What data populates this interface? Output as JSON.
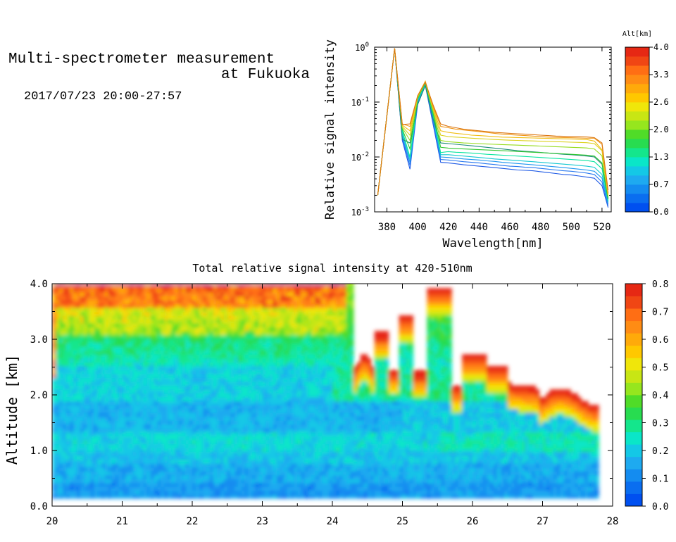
{
  "header": {
    "title_line1": "Multi-spectrometer measurement",
    "title_line2": "at Fukuoka",
    "subtitle": "2017/07/23 20:00-27:57"
  },
  "chart_data": [
    {
      "type": "line",
      "xlabel": "Wavelength[nm]",
      "ylabel": "Relative signal intensity",
      "xlim": [
        372,
        526
      ],
      "ylim": [
        0.001,
        1
      ],
      "yscale": "log",
      "xticks": [
        "380",
        "400",
        "420",
        "440",
        "460",
        "480",
        "500",
        "520"
      ],
      "yticks": [
        "10^0",
        "10^-1",
        "10^-2",
        "10^-3"
      ],
      "x": [
        374,
        385,
        390,
        395,
        400,
        405,
        410,
        415,
        420,
        425,
        430,
        435,
        440,
        445,
        450,
        455,
        460,
        465,
        470,
        475,
        480,
        485,
        490,
        495,
        500,
        505,
        510,
        515,
        520,
        524
      ],
      "series": [
        {
          "altitude": 0.0,
          "color": "#1e5ae6",
          "values": [
            0.002,
            0.95,
            0.02,
            0.006,
            0.09,
            0.2,
            0.04,
            0.008,
            0.0078,
            0.0075,
            0.0072,
            0.007,
            0.0068,
            0.0066,
            0.0064,
            0.0062,
            0.006,
            0.0058,
            0.0057,
            0.0056,
            0.0054,
            0.0052,
            0.005,
            0.0048,
            0.0047,
            0.0045,
            0.0043,
            0.0041,
            0.003,
            0.0012
          ]
        },
        {
          "altitude": 0.35,
          "color": "#2878f0",
          "values": [
            0.002,
            0.95,
            0.022,
            0.007,
            0.095,
            0.205,
            0.045,
            0.009,
            0.0088,
            0.0085,
            0.0082,
            0.008,
            0.0078,
            0.0075,
            0.0073,
            0.007,
            0.0068,
            0.0067,
            0.0065,
            0.0064,
            0.0062,
            0.006,
            0.0058,
            0.0056,
            0.0055,
            0.0053,
            0.0051,
            0.0048,
            0.0035,
            0.0013
          ]
        },
        {
          "altitude": 0.7,
          "color": "#1e96f0",
          "values": [
            0.002,
            0.95,
            0.024,
            0.008,
            0.1,
            0.21,
            0.05,
            0.01,
            0.0098,
            0.0095,
            0.0092,
            0.009,
            0.0088,
            0.0085,
            0.0083,
            0.008,
            0.0078,
            0.0076,
            0.0074,
            0.0072,
            0.007,
            0.0068,
            0.0066,
            0.0064,
            0.0062,
            0.006,
            0.0058,
            0.0055,
            0.0041,
            0.0014
          ]
        },
        {
          "altitude": 1.0,
          "color": "#14c8d2",
          "values": [
            0.002,
            0.95,
            0.027,
            0.009,
            0.105,
            0.215,
            0.055,
            0.011,
            0.011,
            0.0107,
            0.0104,
            0.0101,
            0.0098,
            0.0095,
            0.0092,
            0.009,
            0.0088,
            0.0086,
            0.0084,
            0.0082,
            0.008,
            0.0078,
            0.0076,
            0.0074,
            0.0072,
            0.007,
            0.0068,
            0.0065,
            0.0048,
            0.0015
          ]
        },
        {
          "altitude": 1.3,
          "color": "#0ae6a0",
          "values": [
            0.002,
            0.95,
            0.03,
            0.01,
            0.11,
            0.22,
            0.06,
            0.012,
            0.0125,
            0.0122,
            0.012,
            0.0118,
            0.0115,
            0.0112,
            0.011,
            0.0108,
            0.0106,
            0.0104,
            0.0102,
            0.01,
            0.0098,
            0.0096,
            0.0094,
            0.0092,
            0.009,
            0.0088,
            0.0086,
            0.0082,
            0.0061,
            0.0016
          ]
        },
        {
          "altitude": 1.65,
          "color": "#1e8c78",
          "values": [
            0.002,
            0.95,
            0.021,
            0.018,
            0.09,
            0.2,
            0.05,
            0.018,
            0.0175,
            0.017,
            0.0165,
            0.016,
            0.0155,
            0.015,
            0.0145,
            0.014,
            0.0135,
            0.013,
            0.0127,
            0.0124,
            0.0121,
            0.0118,
            0.0115,
            0.0112,
            0.011,
            0.0107,
            0.0104,
            0.01,
            0.0074,
            0.0017
          ]
        },
        {
          "altitude": 2.0,
          "color": "#32c832",
          "values": [
            0.002,
            0.95,
            0.032,
            0.014,
            0.115,
            0.225,
            0.065,
            0.015,
            0.0145,
            0.0142,
            0.014,
            0.0138,
            0.0136,
            0.0134,
            0.0132,
            0.013,
            0.0128,
            0.0126,
            0.0124,
            0.0122,
            0.012,
            0.0118,
            0.0116,
            0.0114,
            0.0112,
            0.011,
            0.0108,
            0.0104,
            0.0078,
            0.0018
          ]
        },
        {
          "altitude": 2.3,
          "color": "#96dc1e",
          "values": [
            0.002,
            0.95,
            0.034,
            0.02,
            0.12,
            0.23,
            0.07,
            0.02,
            0.019,
            0.0185,
            0.018,
            0.0178,
            0.0175,
            0.0172,
            0.017,
            0.0168,
            0.0166,
            0.0164,
            0.0162,
            0.016,
            0.0158,
            0.0156,
            0.0154,
            0.0152,
            0.015,
            0.0148,
            0.0146,
            0.014,
            0.0105,
            0.0019
          ]
        },
        {
          "altitude": 2.6,
          "color": "#dcd21e",
          "values": [
            0.002,
            0.95,
            0.036,
            0.025,
            0.125,
            0.235,
            0.075,
            0.025,
            0.0235,
            0.023,
            0.0225,
            0.022,
            0.0216,
            0.0212,
            0.0208,
            0.0205,
            0.0202,
            0.02,
            0.0198,
            0.0196,
            0.0194,
            0.0192,
            0.019,
            0.0188,
            0.0186,
            0.0184,
            0.0182,
            0.0175,
            0.013,
            0.002
          ]
        },
        {
          "altitude": 3.0,
          "color": "#f0be14",
          "values": [
            0.002,
            0.95,
            0.038,
            0.03,
            0.13,
            0.24,
            0.08,
            0.03,
            0.028,
            0.027,
            0.026,
            0.025,
            0.0245,
            0.024,
            0.0235,
            0.023,
            0.0228,
            0.0226,
            0.0224,
            0.0222,
            0.022,
            0.0218,
            0.0216,
            0.0214,
            0.0212,
            0.021,
            0.0208,
            0.0195,
            0.0135,
            0.0021
          ]
        },
        {
          "altitude": 3.5,
          "color": "#f09614",
          "values": [
            0.002,
            0.95,
            0.04,
            0.036,
            0.13,
            0.235,
            0.085,
            0.036,
            0.034,
            0.032,
            0.031,
            0.03,
            0.029,
            0.028,
            0.027,
            0.026,
            0.0255,
            0.025,
            0.0245,
            0.024,
            0.0235,
            0.023,
            0.0228,
            0.0226,
            0.0224,
            0.0222,
            0.022,
            0.022,
            0.017,
            0.0022
          ]
        },
        {
          "altitude": 3.8,
          "color": "#dc7814",
          "values": [
            0.002,
            0.95,
            0.039,
            0.04,
            0.13,
            0.23,
            0.09,
            0.04,
            0.036,
            0.034,
            0.032,
            0.031,
            0.03,
            0.029,
            0.028,
            0.0275,
            0.027,
            0.0265,
            0.026,
            0.0255,
            0.025,
            0.0245,
            0.024,
            0.0238,
            0.0236,
            0.0234,
            0.0232,
            0.0225,
            0.018,
            0.0025
          ]
        }
      ]
    },
    {
      "type": "heatmap",
      "title": "Total relative signal intensity at 420-510nm",
      "xlabel": "",
      "ylabel": "Altitude [km]",
      "xlim": [
        20,
        28
      ],
      "ylim": [
        0,
        4
      ],
      "xticks": [
        "20",
        "21",
        "22",
        "23",
        "24",
        "25",
        "26",
        "27",
        "28"
      ],
      "yticks": [
        "0.0",
        "1.0",
        "2.0",
        "3.0",
        "4.0"
      ],
      "data_x_end": 27.8,
      "value_range": [
        0,
        0.8
      ],
      "colorbar_ticks": [
        "0.0",
        "0.1",
        "0.2",
        "0.3",
        "0.4",
        "0.5",
        "0.6",
        "0.7",
        "0.8"
      ],
      "description": "signal low (~0.1-0.2) below 1 km, ~0.2-0.3 from 1-2 km, rising to 0.5-0.8 near cloud base; missing (white) above ~2.2 km after 24.3 h"
    }
  ],
  "colorbars": {
    "top_label": "Alt[km]",
    "top_ticks": [
      "0.0",
      "0.7",
      "1.3",
      "2.0",
      "2.6",
      "3.3",
      "4.0"
    ],
    "colors": [
      "#0050f0",
      "#0a6ef0",
      "#148cf0",
      "#1eaaf0",
      "#14c8e6",
      "#0ae6c8",
      "#14e68c",
      "#28dc50",
      "#50dc28",
      "#96e61e",
      "#c8e614",
      "#f0e60a",
      "#ffc800",
      "#ffaa0a",
      "#ff8c14",
      "#ff6e14",
      "#f04614",
      "#e62814"
    ]
  }
}
